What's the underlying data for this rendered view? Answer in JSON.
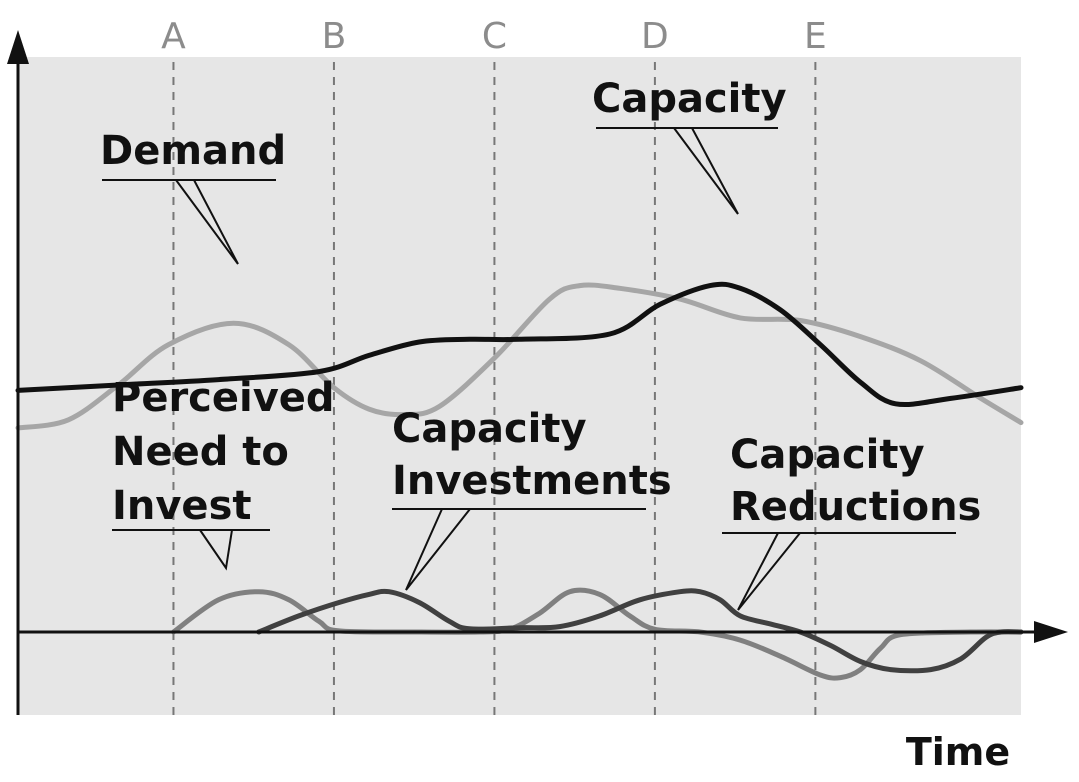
{
  "chart_data": {
    "type": "line",
    "title": "",
    "xlabel": "Time",
    "ylabel": "",
    "xlim": [
      0,
      100
    ],
    "ylim": [
      -15,
      100
    ],
    "grid": false,
    "background": "#e6e6e6",
    "phase_markers": [
      {
        "label": "A",
        "x": 15.5
      },
      {
        "label": "B",
        "x": 31.5
      },
      {
        "label": "C",
        "x": 47.5
      },
      {
        "label": "D",
        "x": 63.5
      },
      {
        "label": "E",
        "x": 79.5
      }
    ],
    "series": [
      {
        "name": "Demand",
        "color": "#a6a6a6",
        "width": 5,
        "points": [
          [
            0,
            38
          ],
          [
            5,
            39.5
          ],
          [
            10,
            46
          ],
          [
            15,
            53.5
          ],
          [
            21.5,
            57.5
          ],
          [
            27,
            53.5
          ],
          [
            31.5,
            45.5
          ],
          [
            35,
            41.5
          ],
          [
            38.5,
            40.5
          ],
          [
            42,
            42
          ],
          [
            47.5,
            51
          ],
          [
            53,
            62
          ],
          [
            56,
            64.5
          ],
          [
            60,
            64
          ],
          [
            66,
            62
          ],
          [
            72,
            58.5
          ],
          [
            78,
            58
          ],
          [
            84,
            55
          ],
          [
            90,
            50.5
          ],
          [
            96,
            43.5
          ],
          [
            100,
            39
          ]
        ]
      },
      {
        "name": "Capacity",
        "color": "#111111",
        "width": 5,
        "points": [
          [
            0,
            45
          ],
          [
            10,
            46
          ],
          [
            20,
            47
          ],
          [
            30,
            48.5
          ],
          [
            35,
            51.5
          ],
          [
            40,
            54
          ],
          [
            45,
            54.5
          ],
          [
            50,
            54.5
          ],
          [
            59,
            55.5
          ],
          [
            64,
            61
          ],
          [
            69,
            64.5
          ],
          [
            72,
            64
          ],
          [
            76,
            60
          ],
          [
            80,
            53.5
          ],
          [
            84,
            46.5
          ],
          [
            87.5,
            42.5
          ],
          [
            93,
            43.5
          ],
          [
            100,
            45.5
          ]
        ]
      },
      {
        "name": "Perceived Need to Invest",
        "color": "#808080",
        "width": 5,
        "points": [
          [
            15.5,
            0
          ],
          [
            20,
            6
          ],
          [
            24,
            7.5
          ],
          [
            27,
            6
          ],
          [
            30,
            2
          ],
          [
            32,
            0.2
          ],
          [
            40,
            0
          ],
          [
            46,
            0
          ],
          [
            49,
            0.5
          ],
          [
            52,
            3.5
          ],
          [
            55,
            7.5
          ],
          [
            58,
            7
          ],
          [
            61,
            3
          ],
          [
            63.5,
            0.5
          ],
          [
            68,
            0
          ],
          [
            72,
            -1.5
          ],
          [
            76,
            -4.5
          ],
          [
            80,
            -8
          ],
          [
            82,
            -8.5
          ],
          [
            84,
            -7
          ],
          [
            86,
            -3
          ],
          [
            88,
            -0.5
          ],
          [
            95,
            0
          ],
          [
            100,
            0
          ]
        ]
      },
      {
        "name": "Capacity Investments",
        "color": "#404040",
        "width": 5,
        "points": [
          [
            24,
            0
          ],
          [
            28,
            3
          ],
          [
            32,
            5.5
          ],
          [
            35,
            7
          ],
          [
            37,
            7.5
          ],
          [
            40,
            5.5
          ],
          [
            43,
            2
          ],
          [
            45,
            0.6
          ],
          [
            50,
            0.8
          ],
          [
            54,
            1
          ],
          [
            58,
            3
          ],
          [
            62,
            6
          ],
          [
            66,
            7.5
          ],
          [
            68,
            7.5
          ],
          [
            70,
            6
          ],
          [
            72,
            3
          ],
          [
            75,
            1.5
          ],
          [
            78,
            0
          ],
          [
            81,
            -2.5
          ],
          [
            84,
            -5.5
          ],
          [
            87,
            -7
          ],
          [
            91,
            -7
          ],
          [
            94,
            -5
          ],
          [
            96.5,
            -1
          ],
          [
            98,
            0
          ],
          [
            100,
            0
          ]
        ]
      }
    ],
    "annotations": [
      {
        "lines": [
          "Demand"
        ],
        "target_series": "Demand"
      },
      {
        "lines": [
          "Capacity"
        ],
        "target_series": "Capacity"
      },
      {
        "lines": [
          "Perceived",
          "Need to",
          "Invest"
        ],
        "target_series": "Perceived Need to Invest"
      },
      {
        "lines": [
          "Capacity",
          "Investments"
        ],
        "target_series": "Capacity Investments"
      },
      {
        "lines": [
          "Capacity",
          "Reductions"
        ],
        "target_series": "Capacity Investments"
      }
    ]
  }
}
